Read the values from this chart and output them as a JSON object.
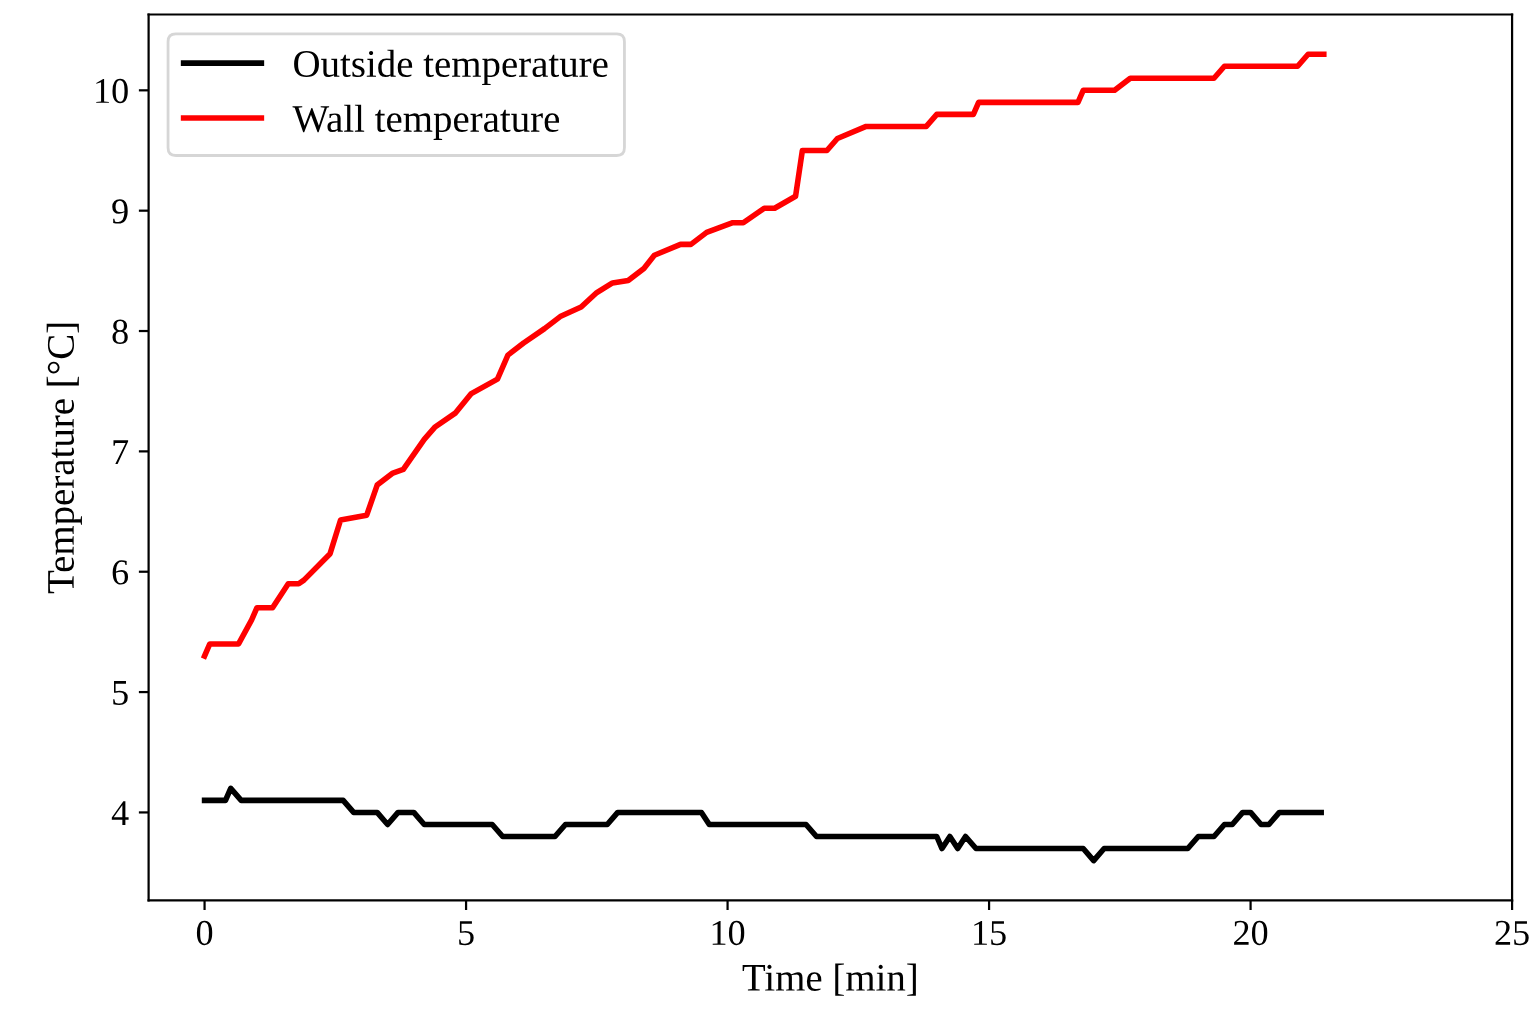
{
  "chart_data": {
    "type": "line",
    "xlabel": "Time [min]",
    "ylabel": "Temperature [°C]",
    "xlim": [
      -1.07,
      25
    ],
    "ylim": [
      3.27,
      10.63
    ],
    "xticks": [
      0,
      5,
      10,
      15,
      20,
      25
    ],
    "yticks": [
      4,
      5,
      6,
      7,
      8,
      9,
      10
    ],
    "grid": false,
    "legend": "top left",
    "marker": "none",
    "line_style": "solid",
    "series": [
      {
        "name": "Outside temperature",
        "color": "#000000",
        "x": [
          0,
          0.4,
          0.5,
          0.7,
          2.65,
          2.85,
          3.3,
          3.5,
          3.7,
          4.0,
          4.2,
          5.5,
          5.7,
          6.7,
          6.9,
          7.7,
          7.9,
          9.5,
          9.65,
          11.5,
          11.7,
          14.0,
          14.1,
          14.25,
          14.4,
          14.55,
          14.75,
          16.8,
          17.0,
          17.2,
          18.8,
          19.0,
          19.3,
          19.5,
          19.65,
          19.85,
          20.0,
          20.2,
          20.35,
          20.55,
          21.35
        ],
        "values": [
          4.1,
          4.1,
          4.2,
          4.1,
          4.1,
          4.0,
          4.0,
          3.9,
          4.0,
          4.0,
          3.9,
          3.9,
          3.8,
          3.8,
          3.9,
          3.9,
          4.0,
          4.0,
          3.9,
          3.9,
          3.8,
          3.8,
          3.7,
          3.8,
          3.7,
          3.8,
          3.7,
          3.7,
          3.6,
          3.7,
          3.7,
          3.8,
          3.8,
          3.9,
          3.9,
          4.0,
          4.0,
          3.9,
          3.9,
          4.0,
          4.0
        ]
      },
      {
        "name": "Wall temperature",
        "color": "#ff0000",
        "x": [
          0,
          0.1,
          0.65,
          0.9,
          1.0,
          1.3,
          1.6,
          1.8,
          1.9,
          2.4,
          2.6,
          3.1,
          3.3,
          3.6,
          3.8,
          4.2,
          4.4,
          4.8,
          5.1,
          5.6,
          5.8,
          6.1,
          6.5,
          6.8,
          7.2,
          7.5,
          7.8,
          8.1,
          8.4,
          8.6,
          9.1,
          9.3,
          9.6,
          10.1,
          10.3,
          10.7,
          10.9,
          11.3,
          11.43,
          11.9,
          12.1,
          12.65,
          13.8,
          14.0,
          14.7,
          14.8,
          16.7,
          16.8,
          17.4,
          17.7,
          19.3,
          19.5,
          20.9,
          21.1,
          21.4
        ],
        "values": [
          5.3,
          5.4,
          5.4,
          5.6,
          5.7,
          5.7,
          5.9,
          5.9,
          5.93,
          6.15,
          6.43,
          6.47,
          6.72,
          6.82,
          6.85,
          7.1,
          7.2,
          7.32,
          7.48,
          7.6,
          7.8,
          7.9,
          8.02,
          8.12,
          8.2,
          8.32,
          8.4,
          8.42,
          8.52,
          8.63,
          8.72,
          8.72,
          8.82,
          8.9,
          8.9,
          9.02,
          9.02,
          9.12,
          9.5,
          9.5,
          9.6,
          9.7,
          9.7,
          9.8,
          9.8,
          9.9,
          9.9,
          10.0,
          10.0,
          10.1,
          10.1,
          10.2,
          10.2,
          10.3,
          10.3
        ]
      }
    ]
  }
}
